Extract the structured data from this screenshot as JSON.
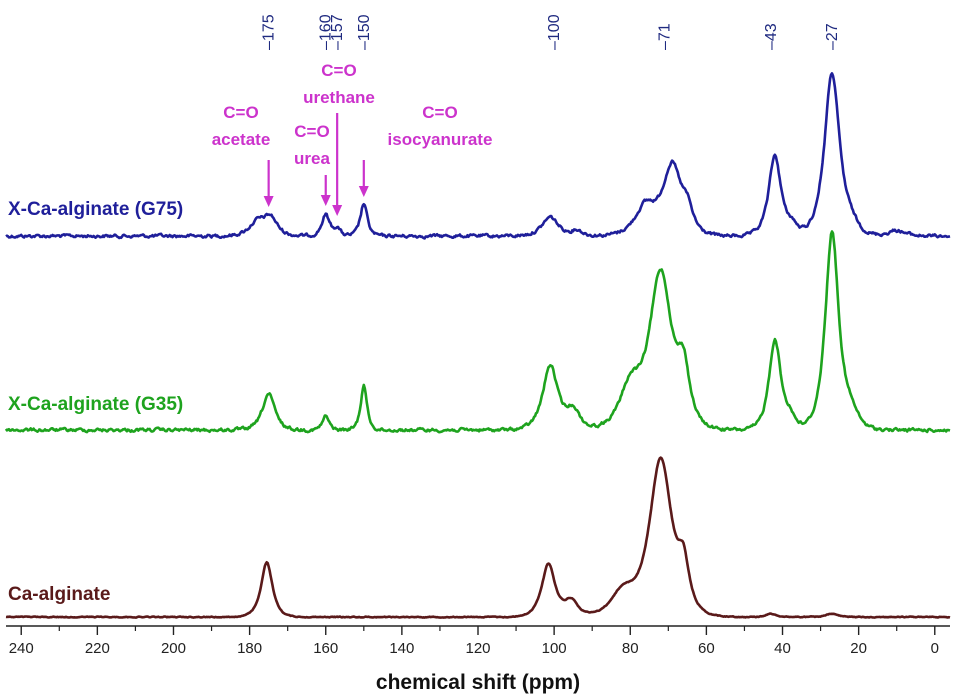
{
  "chart_data": {
    "type": "line",
    "xlabel": "chemical shift (ppm)",
    "xlim": [
      244,
      -4
    ],
    "x_reversed": true,
    "x_ticks": [
      240,
      220,
      200,
      180,
      160,
      140,
      120,
      100,
      80,
      60,
      40,
      20,
      0
    ],
    "grid": false,
    "legend": "none",
    "peak_labels": [
      {
        "x": 175,
        "text": "–175"
      },
      {
        "x": 160,
        "text": "–160"
      },
      {
        "x": 157,
        "text": "–157"
      },
      {
        "x": 150,
        "text": "–150"
      },
      {
        "x": 100,
        "text": "–100"
      },
      {
        "x": 71,
        "text": "–71"
      },
      {
        "x": 43,
        "text": "–43"
      },
      {
        "x": 27,
        "text": "–27"
      }
    ],
    "annotations": [
      {
        "lines": [
          "C=O",
          "acetate"
        ],
        "x": 175
      },
      {
        "lines": [
          "C=O",
          "urea"
        ],
        "x": 160
      },
      {
        "lines": [
          "C=O",
          "urethane"
        ],
        "x": 157
      },
      {
        "lines": [
          "C=O",
          "isocyanurate"
        ],
        "x": 150
      }
    ],
    "series": [
      {
        "name": "X-Ca-alginate (G75)",
        "color": "#1f1f9a",
        "peaks": [
          {
            "x": 178,
            "h": 0.07,
            "w": 3
          },
          {
            "x": 174.5,
            "h": 0.09,
            "w": 2.5
          },
          {
            "x": 160,
            "h": 0.11,
            "w": 1.5
          },
          {
            "x": 157,
            "h": 0.04,
            "w": 1.2
          },
          {
            "x": 150,
            "h": 0.17,
            "w": 1.3
          },
          {
            "x": 101,
            "h": 0.1,
            "w": 3
          },
          {
            "x": 94,
            "h": 0.03,
            "w": 2
          },
          {
            "x": 76,
            "h": 0.15,
            "w": 4
          },
          {
            "x": 69,
            "h": 0.36,
            "w": 3.5
          },
          {
            "x": 65,
            "h": 0.1,
            "w": 2
          },
          {
            "x": 42,
            "h": 0.42,
            "w": 2.3
          },
          {
            "x": 37.5,
            "h": 0.05,
            "w": 2
          },
          {
            "x": 27,
            "h": 0.85,
            "w": 2.8
          },
          {
            "x": 22,
            "h": 0.05,
            "w": 3
          },
          {
            "x": 10,
            "h": 0.03,
            "w": 3
          }
        ]
      },
      {
        "name": "X-Ca-alginate (G35)",
        "color": "#1ea31e",
        "peaks": [
          {
            "x": 175,
            "h": 0.18,
            "w": 2.3
          },
          {
            "x": 160,
            "h": 0.07,
            "w": 1.2
          },
          {
            "x": 150,
            "h": 0.22,
            "w": 1.2
          },
          {
            "x": 101,
            "h": 0.32,
            "w": 2.8
          },
          {
            "x": 95,
            "h": 0.1,
            "w": 2.5
          },
          {
            "x": 80,
            "h": 0.2,
            "w": 4
          },
          {
            "x": 72,
            "h": 0.78,
            "w": 4.2
          },
          {
            "x": 66,
            "h": 0.25,
            "w": 2.2
          },
          {
            "x": 42,
            "h": 0.45,
            "w": 2.2
          },
          {
            "x": 38,
            "h": 0.06,
            "w": 2
          },
          {
            "x": 27,
            "h": 0.98,
            "w": 2.5
          },
          {
            "x": 22,
            "h": 0.08,
            "w": 3
          }
        ]
      },
      {
        "name": "Ca-alginate",
        "color": "#5a1a1a",
        "peaks": [
          {
            "x": 175.5,
            "h": 0.34,
            "w": 2.1
          },
          {
            "x": 101.5,
            "h": 0.33,
            "w": 2.5
          },
          {
            "x": 95.5,
            "h": 0.1,
            "w": 2.5
          },
          {
            "x": 82,
            "h": 0.15,
            "w": 4.5
          },
          {
            "x": 72,
            "h": 0.98,
            "w": 4.2
          },
          {
            "x": 66,
            "h": 0.25,
            "w": 2
          },
          {
            "x": 43,
            "h": 0.02,
            "w": 2
          },
          {
            "x": 27,
            "h": 0.02,
            "w": 2
          }
        ]
      }
    ]
  }
}
